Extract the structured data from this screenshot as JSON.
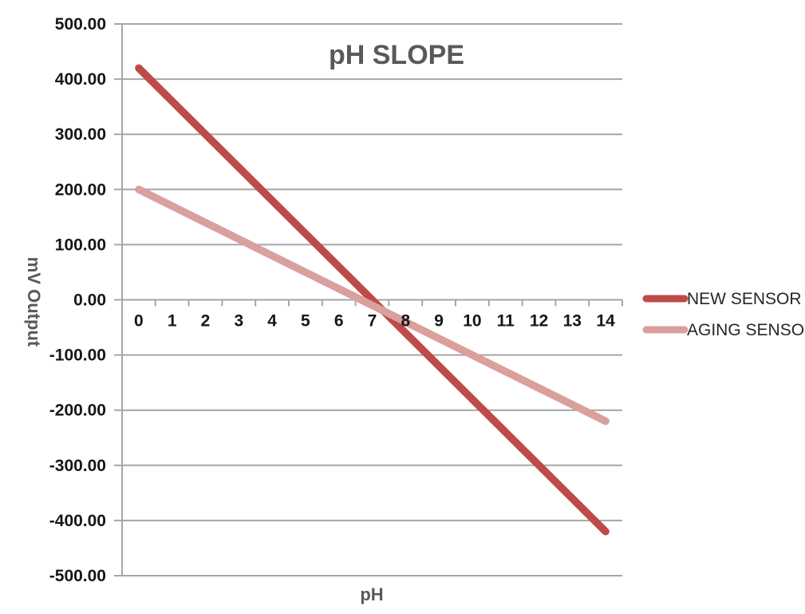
{
  "chart_data": {
    "type": "line",
    "title": "pH SLOPE",
    "xlabel": "pH",
    "ylabel": "mV Output",
    "x": [
      0,
      1,
      2,
      3,
      4,
      5,
      6,
      7,
      8,
      9,
      10,
      11,
      12,
      13,
      14
    ],
    "xtick_labels": [
      "0",
      "1",
      "2",
      "3",
      "4",
      "5",
      "6",
      "7",
      "8",
      "9",
      "10",
      "11",
      "12",
      "13",
      "14"
    ],
    "ylim": [
      -500,
      500
    ],
    "ytick_step": 100,
    "ytick_labels": [
      "500.00",
      "400.00",
      "300.00",
      "200.00",
      "100.00",
      "0.00",
      "-100.00",
      "-200.00",
      "-300.00",
      "-400.00",
      "-500.00"
    ],
    "grid": true,
    "legend_position": "right",
    "series": [
      {
        "name": "NEW SENSOR",
        "color": "#BE4B48",
        "values": [
          420,
          360,
          300,
          240,
          180,
          120,
          60,
          0,
          -60,
          -120,
          -180,
          -240,
          -300,
          -360,
          -420
        ]
      },
      {
        "name": "AGING SENSOR",
        "color": "#D9A09D",
        "values": [
          200,
          170,
          140,
          110,
          80,
          50,
          20,
          -10,
          -40,
          -70,
          -100,
          -130,
          -160,
          -190,
          -220
        ]
      }
    ]
  },
  "colors": {
    "grid": "#A6A6A6",
    "axis": "#A6A6A6",
    "tick_text": "#161616",
    "title_text": "#595959",
    "legend_text": "#262626",
    "background": "#FFFFFF",
    "new_sensor": "#BE4B48",
    "aging_sensor": "#D9A09D"
  }
}
